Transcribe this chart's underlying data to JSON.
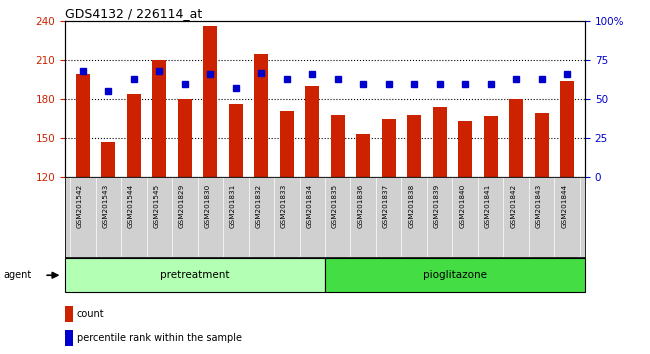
{
  "title": "GDS4132 / 226114_at",
  "samples": [
    "GSM201542",
    "GSM201543",
    "GSM201544",
    "GSM201545",
    "GSM201829",
    "GSM201830",
    "GSM201831",
    "GSM201832",
    "GSM201833",
    "GSM201834",
    "GSM201835",
    "GSM201836",
    "GSM201837",
    "GSM201838",
    "GSM201839",
    "GSM201840",
    "GSM201841",
    "GSM201842",
    "GSM201843",
    "GSM201844"
  ],
  "counts": [
    199,
    147,
    184,
    210,
    180,
    236,
    176,
    215,
    171,
    190,
    168,
    153,
    165,
    168,
    174,
    163,
    167,
    180,
    169,
    194
  ],
  "percentiles": [
    68,
    55,
    63,
    68,
    60,
    66,
    57,
    67,
    63,
    66,
    63,
    60,
    60,
    60,
    60,
    60,
    60,
    63,
    63,
    66
  ],
  "pretreatment_count": 10,
  "pioglitazone_count": 10,
  "ylim_left": [
    120,
    240
  ],
  "ylim_right": [
    0,
    100
  ],
  "yticks_left": [
    120,
    150,
    180,
    210,
    240
  ],
  "yticks_right": [
    0,
    25,
    50,
    75,
    100
  ],
  "ytick_labels_right": [
    "0",
    "25",
    "50",
    "75",
    "100%"
  ],
  "bar_color": "#cc2200",
  "dot_color": "#0000cc",
  "grid_color": "#000000",
  "pretreatment_color": "#b3ffb3",
  "pioglitazone_color": "#44dd44",
  "title_color": "#000000",
  "left_tick_color": "#cc2200",
  "right_tick_color": "#0000cc",
  "xtick_bg_color": "#d0d0d0"
}
